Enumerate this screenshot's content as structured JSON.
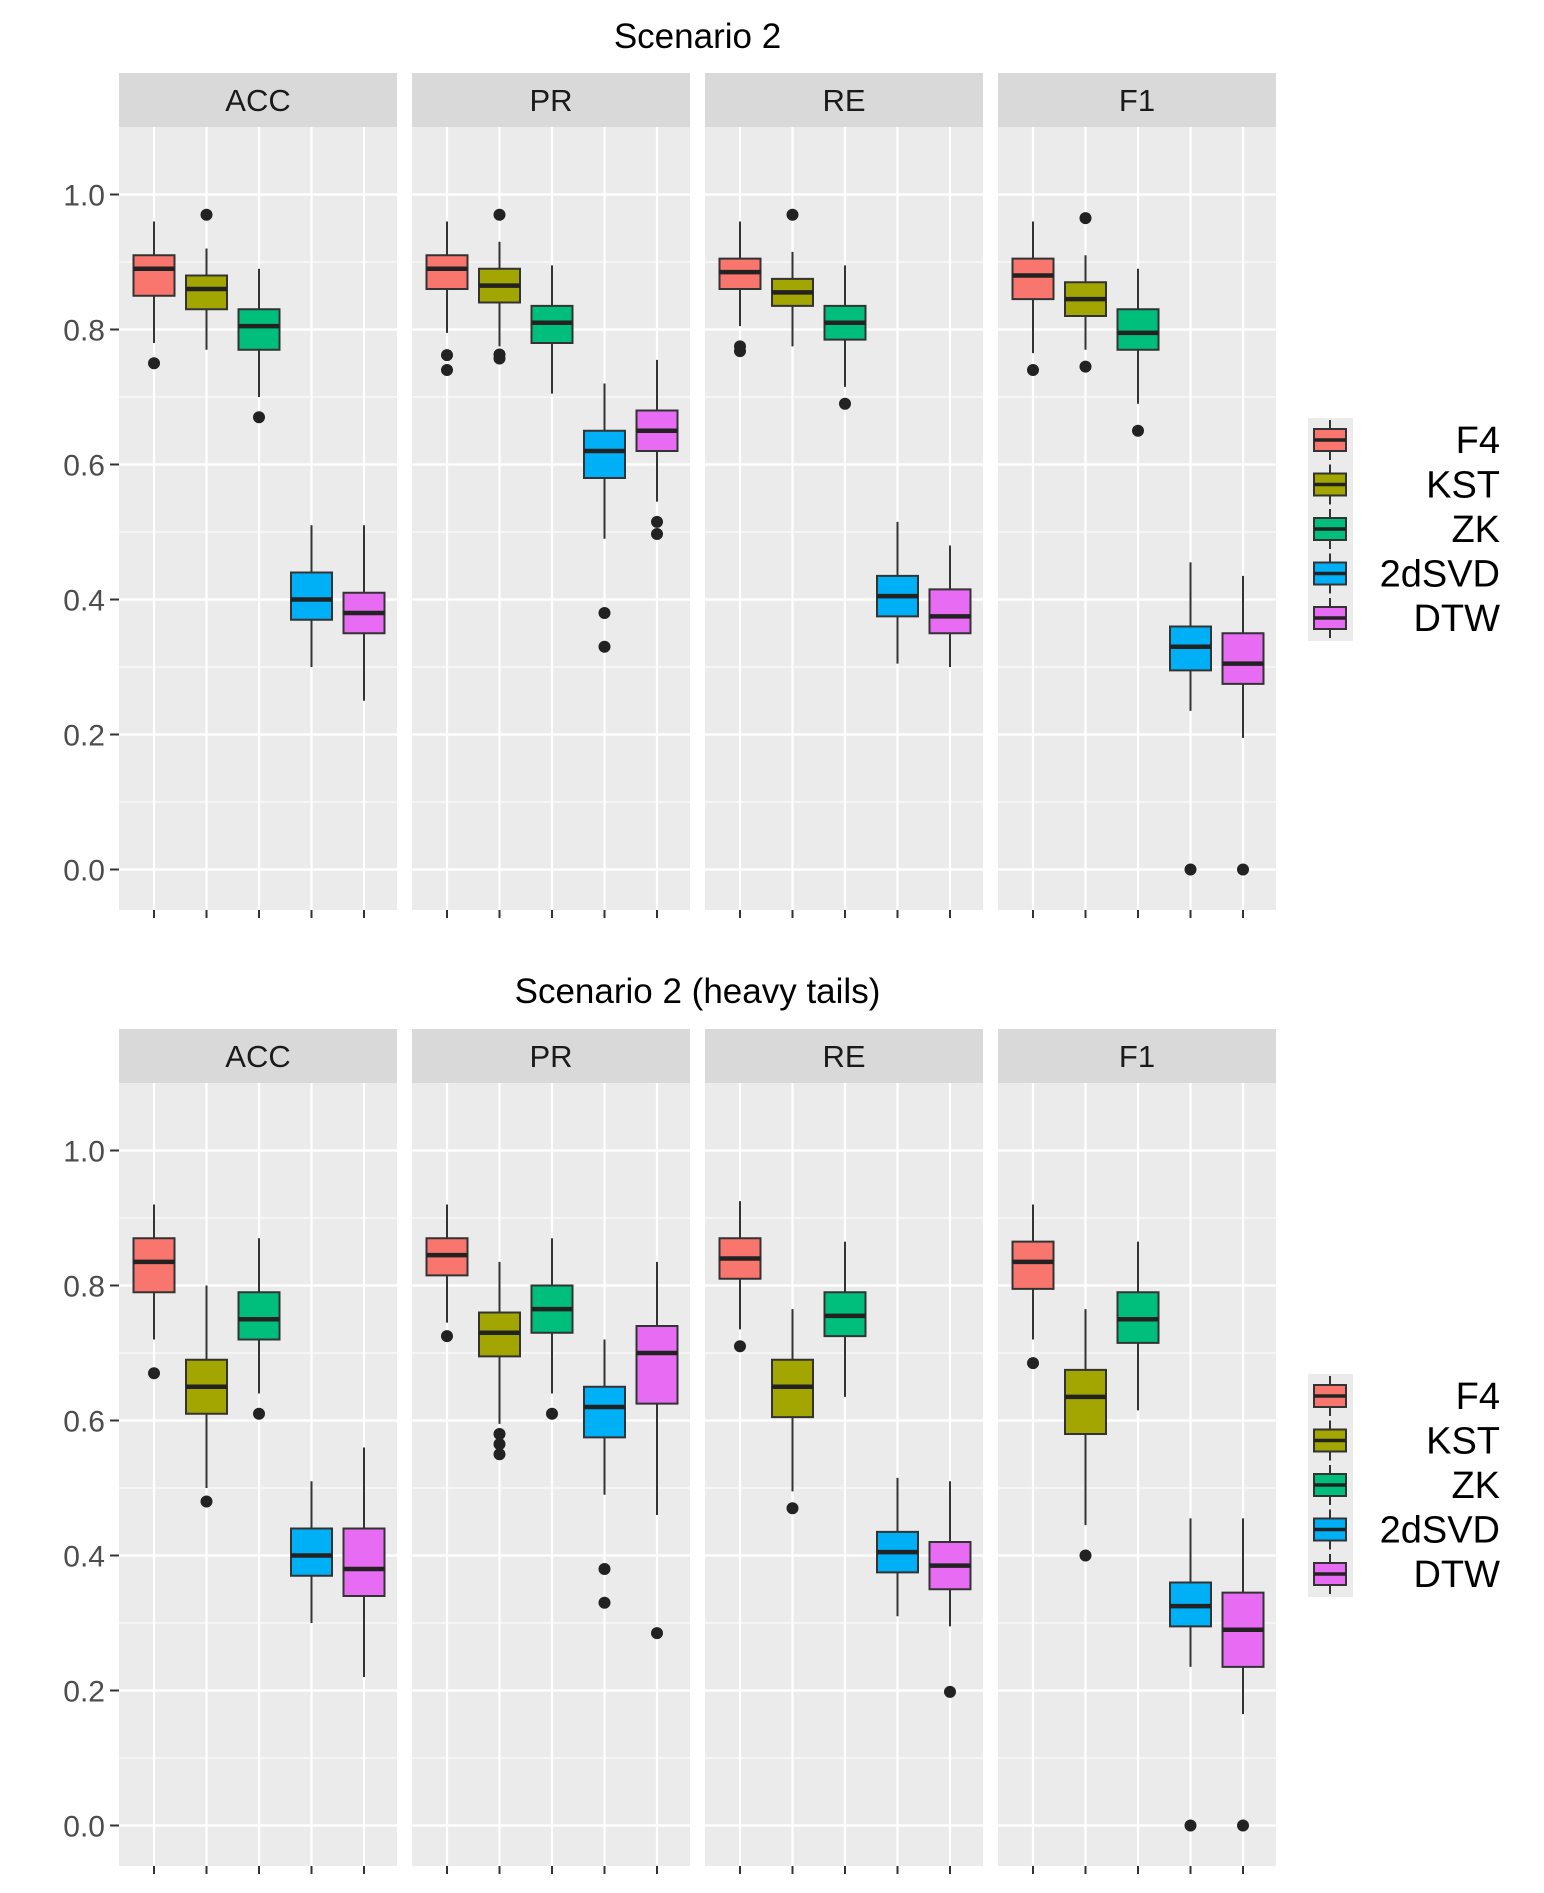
{
  "chart_data": [
    {
      "type": "boxplot",
      "title": "Scenario 2",
      "facets": [
        "ACC",
        "PR",
        "RE",
        "F1"
      ],
      "methods": [
        "F4",
        "KST",
        "ZK",
        "2dSVD",
        "DTW"
      ],
      "ylim": [
        -0.06,
        1.1
      ],
      "yticks": [
        0.0,
        0.2,
        0.4,
        0.6,
        0.8,
        1.0
      ],
      "ytick_labels": [
        "0.0",
        "0.2",
        "0.4",
        "0.6",
        "0.8",
        "1.0"
      ],
      "grid": true,
      "legend": "right",
      "boxes": {
        "ACC": [
          {
            "method": "F4",
            "min": 0.78,
            "q1": 0.85,
            "median": 0.89,
            "q3": 0.91,
            "max": 0.96,
            "outliers": [
              0.75
            ]
          },
          {
            "method": "KST",
            "min": 0.77,
            "q1": 0.83,
            "median": 0.86,
            "q3": 0.88,
            "max": 0.92,
            "outliers": [
              0.97
            ]
          },
          {
            "method": "ZK",
            "min": 0.7,
            "q1": 0.77,
            "median": 0.805,
            "q3": 0.83,
            "max": 0.89,
            "outliers": [
              0.67
            ]
          },
          {
            "method": "2dSVD",
            "min": 0.3,
            "q1": 0.37,
            "median": 0.4,
            "q3": 0.44,
            "max": 0.51,
            "outliers": []
          },
          {
            "method": "DTW",
            "min": 0.25,
            "q1": 0.35,
            "median": 0.38,
            "q3": 0.41,
            "max": 0.51,
            "outliers": []
          }
        ],
        "PR": [
          {
            "method": "F4",
            "min": 0.795,
            "q1": 0.86,
            "median": 0.89,
            "q3": 0.91,
            "max": 0.96,
            "outliers": [
              0.762,
              0.74
            ]
          },
          {
            "method": "KST",
            "min": 0.775,
            "q1": 0.84,
            "median": 0.865,
            "q3": 0.89,
            "max": 0.93,
            "outliers": [
              0.97,
              0.763,
              0.757
            ]
          },
          {
            "method": "ZK",
            "min": 0.705,
            "q1": 0.78,
            "median": 0.81,
            "q3": 0.835,
            "max": 0.895,
            "outliers": []
          },
          {
            "method": "2dSVD",
            "min": 0.49,
            "q1": 0.58,
            "median": 0.62,
            "q3": 0.65,
            "max": 0.72,
            "outliers": [
              0.38,
              0.33
            ]
          },
          {
            "method": "DTW",
            "min": 0.545,
            "q1": 0.62,
            "median": 0.65,
            "q3": 0.68,
            "max": 0.755,
            "outliers": [
              0.515,
              0.497
            ]
          }
        ],
        "RE": [
          {
            "method": "F4",
            "min": 0.805,
            "q1": 0.86,
            "median": 0.885,
            "q3": 0.905,
            "max": 0.96,
            "outliers": [
              0.775,
              0.768
            ]
          },
          {
            "method": "KST",
            "min": 0.775,
            "q1": 0.835,
            "median": 0.855,
            "q3": 0.875,
            "max": 0.915,
            "outliers": [
              0.97
            ]
          },
          {
            "method": "ZK",
            "min": 0.715,
            "q1": 0.785,
            "median": 0.81,
            "q3": 0.835,
            "max": 0.895,
            "outliers": [
              0.69
            ]
          },
          {
            "method": "2dSVD",
            "min": 0.305,
            "q1": 0.375,
            "median": 0.405,
            "q3": 0.435,
            "max": 0.515,
            "outliers": []
          },
          {
            "method": "DTW",
            "min": 0.3,
            "q1": 0.35,
            "median": 0.375,
            "q3": 0.415,
            "max": 0.48,
            "outliers": []
          }
        ],
        "F1": [
          {
            "method": "F4",
            "min": 0.765,
            "q1": 0.845,
            "median": 0.88,
            "q3": 0.905,
            "max": 0.96,
            "outliers": [
              0.74
            ]
          },
          {
            "method": "KST",
            "min": 0.77,
            "q1": 0.82,
            "median": 0.845,
            "q3": 0.87,
            "max": 0.91,
            "outliers": [
              0.965,
              0.745
            ]
          },
          {
            "method": "ZK",
            "min": 0.69,
            "q1": 0.77,
            "median": 0.795,
            "q3": 0.83,
            "max": 0.89,
            "outliers": [
              0.65
            ]
          },
          {
            "method": "2dSVD",
            "min": 0.235,
            "q1": 0.295,
            "median": 0.33,
            "q3": 0.36,
            "max": 0.455,
            "outliers": [
              0.0
            ]
          },
          {
            "method": "DTW",
            "min": 0.195,
            "q1": 0.275,
            "median": 0.305,
            "q3": 0.35,
            "max": 0.435,
            "outliers": [
              0.0
            ]
          }
        ]
      }
    },
    {
      "type": "boxplot",
      "title": "Scenario 2 (heavy tails)",
      "facets": [
        "ACC",
        "PR",
        "RE",
        "F1"
      ],
      "methods": [
        "F4",
        "KST",
        "ZK",
        "2dSVD",
        "DTW"
      ],
      "ylim": [
        -0.06,
        1.1
      ],
      "yticks": [
        0.0,
        0.2,
        0.4,
        0.6,
        0.8,
        1.0
      ],
      "ytick_labels": [
        "0.0",
        "0.2",
        "0.4",
        "0.6",
        "0.8",
        "1.0"
      ],
      "grid": true,
      "legend": "right",
      "boxes": {
        "ACC": [
          {
            "method": "F4",
            "min": 0.72,
            "q1": 0.79,
            "median": 0.835,
            "q3": 0.87,
            "max": 0.92,
            "outliers": [
              0.67
            ]
          },
          {
            "method": "KST",
            "min": 0.5,
            "q1": 0.61,
            "median": 0.65,
            "q3": 0.69,
            "max": 0.8,
            "outliers": [
              0.48
            ]
          },
          {
            "method": "ZK",
            "min": 0.64,
            "q1": 0.72,
            "median": 0.75,
            "q3": 0.79,
            "max": 0.87,
            "outliers": [
              0.61
            ]
          },
          {
            "method": "2dSVD",
            "min": 0.3,
            "q1": 0.37,
            "median": 0.4,
            "q3": 0.44,
            "max": 0.51,
            "outliers": []
          },
          {
            "method": "DTW",
            "min": 0.22,
            "q1": 0.34,
            "median": 0.38,
            "q3": 0.44,
            "max": 0.56,
            "outliers": []
          }
        ],
        "PR": [
          {
            "method": "F4",
            "min": 0.745,
            "q1": 0.815,
            "median": 0.845,
            "q3": 0.87,
            "max": 0.92,
            "outliers": [
              0.725
            ]
          },
          {
            "method": "KST",
            "min": 0.595,
            "q1": 0.695,
            "median": 0.73,
            "q3": 0.76,
            "max": 0.835,
            "outliers": [
              0.58,
              0.565,
              0.55
            ]
          },
          {
            "method": "ZK",
            "min": 0.64,
            "q1": 0.73,
            "median": 0.765,
            "q3": 0.8,
            "max": 0.87,
            "outliers": [
              0.61
            ]
          },
          {
            "method": "2dSVD",
            "min": 0.49,
            "q1": 0.575,
            "median": 0.62,
            "q3": 0.65,
            "max": 0.72,
            "outliers": [
              0.38,
              0.33
            ]
          },
          {
            "method": "DTW",
            "min": 0.46,
            "q1": 0.625,
            "median": 0.7,
            "q3": 0.74,
            "max": 0.835,
            "outliers": [
              0.285
            ]
          }
        ],
        "RE": [
          {
            "method": "F4",
            "min": 0.735,
            "q1": 0.81,
            "median": 0.84,
            "q3": 0.87,
            "max": 0.925,
            "outliers": [
              0.71
            ]
          },
          {
            "method": "KST",
            "min": 0.495,
            "q1": 0.605,
            "median": 0.65,
            "q3": 0.69,
            "max": 0.765,
            "outliers": [
              0.47
            ]
          },
          {
            "method": "ZK",
            "min": 0.635,
            "q1": 0.725,
            "median": 0.755,
            "q3": 0.79,
            "max": 0.865,
            "outliers": []
          },
          {
            "method": "2dSVD",
            "min": 0.31,
            "q1": 0.375,
            "median": 0.405,
            "q3": 0.435,
            "max": 0.515,
            "outliers": []
          },
          {
            "method": "DTW",
            "min": 0.295,
            "q1": 0.35,
            "median": 0.385,
            "q3": 0.42,
            "max": 0.51,
            "outliers": [
              0.198
            ]
          }
        ],
        "F1": [
          {
            "method": "F4",
            "min": 0.72,
            "q1": 0.795,
            "median": 0.835,
            "q3": 0.865,
            "max": 0.92,
            "outliers": [
              0.685
            ]
          },
          {
            "method": "KST",
            "min": 0.445,
            "q1": 0.58,
            "median": 0.635,
            "q3": 0.675,
            "max": 0.765,
            "outliers": [
              0.4
            ]
          },
          {
            "method": "ZK",
            "min": 0.615,
            "q1": 0.715,
            "median": 0.75,
            "q3": 0.79,
            "max": 0.865,
            "outliers": []
          },
          {
            "method": "2dSVD",
            "min": 0.235,
            "q1": 0.295,
            "median": 0.325,
            "q3": 0.36,
            "max": 0.455,
            "outliers": [
              0.0
            ]
          },
          {
            "method": "DTW",
            "min": 0.165,
            "q1": 0.235,
            "median": 0.29,
            "q3": 0.345,
            "max": 0.455,
            "outliers": [
              0.0
            ]
          }
        ]
      }
    }
  ],
  "legend": {
    "items": [
      {
        "label": "F4",
        "color": "#F8766D"
      },
      {
        "label": "KST",
        "color": "#A3A500"
      },
      {
        "label": "ZK",
        "color": "#00BF7D"
      },
      {
        "label": "2dSVD",
        "color": "#00B0F6"
      },
      {
        "label": "DTW",
        "color": "#E76BF3"
      }
    ]
  },
  "colors": {
    "panel_bg": "#EBEBEB",
    "strip_bg": "#D9D9D9",
    "grid": "#FFFFFF",
    "axis_text": "#4D4D4D",
    "box_line": "#333333"
  }
}
